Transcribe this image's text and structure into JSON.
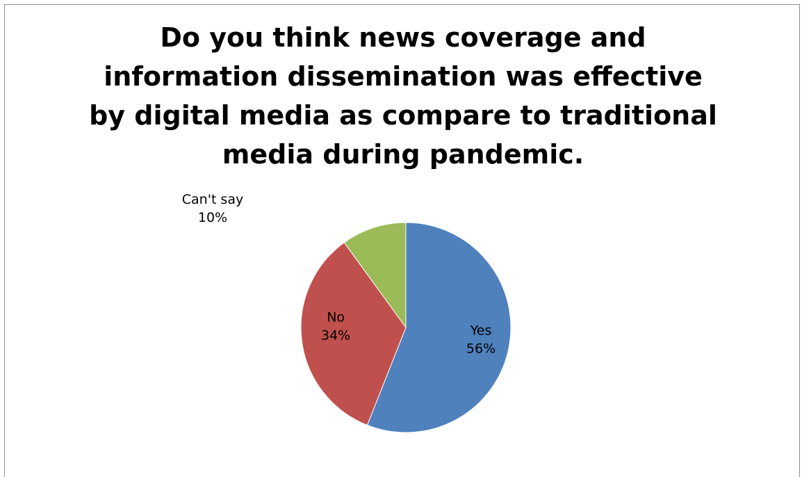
{
  "chart_data": {
    "type": "pie",
    "title": "Do you think news coverage and information dissemination was effective by digital media as compare to traditional media during pandemic.",
    "slices": [
      {
        "label": "Yes",
        "value": 56,
        "display": "56%",
        "color": "#4f81bd"
      },
      {
        "label": "No",
        "value": 34,
        "display": "34%",
        "color": "#c0504d"
      },
      {
        "label": "Can't say",
        "value": 10,
        "display": "10%",
        "color": "#9bbb59"
      }
    ],
    "legend": false
  }
}
